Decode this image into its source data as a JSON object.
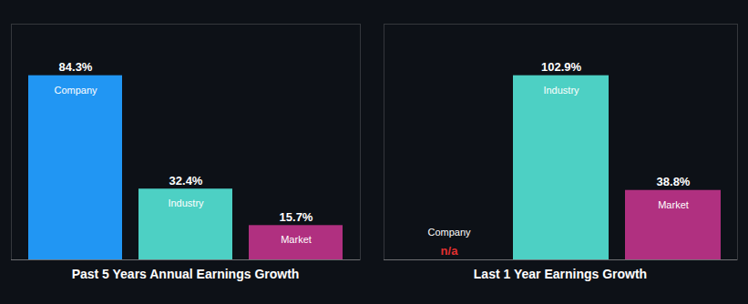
{
  "chart_data": [
    {
      "type": "bar",
      "title": "Past 5 Years Annual Earnings Growth",
      "categories": [
        "Company",
        "Industry",
        "Market"
      ],
      "values": [
        84.3,
        32.4,
        15.7
      ],
      "value_labels": [
        "84.3%",
        "32.4%",
        "15.7%"
      ],
      "colors": [
        "#2196f3",
        "#4dd0c4",
        "#b03080"
      ],
      "ylim": [
        0,
        107.904
      ],
      "tick_labels": false,
      "grid": false,
      "data_labels": true
    },
    {
      "type": "bar",
      "title": "Last 1 Year Earnings Growth",
      "categories": [
        "Company",
        "Industry",
        "Market"
      ],
      "values": [
        null,
        102.9,
        38.8
      ],
      "value_labels": [
        "n/a",
        "102.9%",
        "38.8%"
      ],
      "colors": [
        "#2196f3",
        "#4dd0c4",
        "#b03080"
      ],
      "ylim": [
        0,
        131.712
      ],
      "tick_labels": false,
      "grid": false,
      "data_labels": true
    }
  ]
}
